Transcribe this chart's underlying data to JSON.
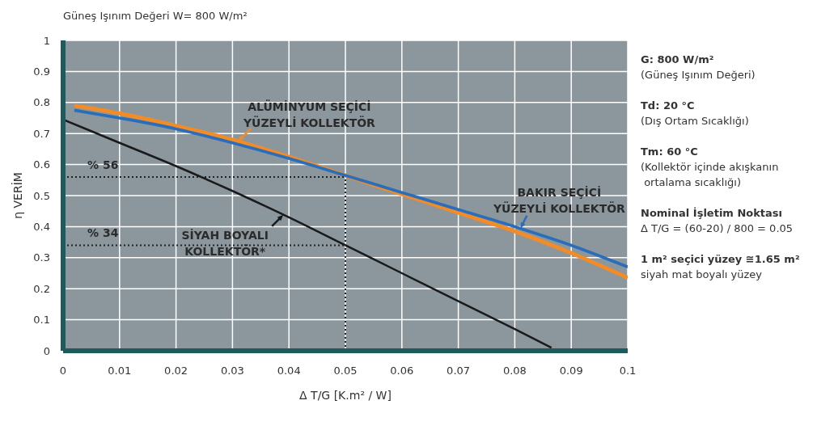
{
  "chart_data": {
    "type": "line",
    "title": "Güneş Işınım Değeri W= 800 W/m²",
    "xlabel": "Δ T/G [K.m² / W]",
    "ylabel": "η VERİM",
    "xlim": [
      0,
      0.1
    ],
    "xticks": [
      0,
      0.01,
      0.02,
      0.03,
      0.04,
      0.05,
      0.06,
      0.07,
      0.08,
      0.09,
      0.1
    ],
    "ylim": [
      0,
      1
    ],
    "yticks": [
      0,
      0.1,
      0.2,
      0.3,
      0.4,
      0.5,
      0.6,
      0.7,
      0.8,
      0.9,
      1
    ],
    "grid": true,
    "marker": "none",
    "line_style": "solid",
    "series": [
      {
        "color": "#f28c28",
        "x": [
          0.002,
          0.01,
          0.02,
          0.03,
          0.04,
          0.05,
          0.06,
          0.07,
          0.08,
          0.09,
          0.1
        ],
        "values": [
          0.79,
          0.765,
          0.725,
          0.68,
          0.625,
          0.565,
          0.505,
          0.445,
          0.385,
          0.315,
          0.235
        ]
      },
      {
        "color": "#2a6ebb",
        "x": [
          0.002,
          0.01,
          0.02,
          0.03,
          0.04,
          0.05,
          0.06,
          0.07,
          0.08,
          0.09,
          0.1
        ],
        "values": [
          0.775,
          0.75,
          0.715,
          0.67,
          0.62,
          0.565,
          0.51,
          0.455,
          0.4,
          0.34,
          0.27
        ]
      },
      {
        "color": "#1a1a1a",
        "x": [
          0,
          0.01,
          0.02,
          0.03,
          0.04,
          0.05,
          0.06,
          0.07,
          0.08,
          0.0865
        ],
        "values": [
          0.745,
          0.67,
          0.595,
          0.515,
          0.43,
          0.34,
          0.25,
          0.16,
          0.07,
          0.01
        ]
      }
    ],
    "ref_lines": [
      {
        "axis": "y",
        "value": 0.56,
        "label": "% 56",
        "line_style": "dotted",
        "color": "#222222"
      },
      {
        "axis": "y",
        "value": 0.34,
        "label": "% 34",
        "line_style": "dotted",
        "color": "#222222"
      },
      {
        "axis": "x",
        "value": 0.05,
        "line_style": "dotted",
        "color": "#222222"
      }
    ],
    "annotations": [
      {
        "text": "ALÜMİNYUM SEÇİCİ\nYÜZEYLİ KOLLEKTÖR",
        "x": 0.031,
        "y": 0.675
      },
      {
        "text": "BAKIR SEÇİCİ\nYÜZEYLİ KOLLEKTÖR",
        "x": 0.081,
        "y": 0.394
      },
      {
        "text": "SİYAH BOYALI\nKOLLEKTÖR*",
        "x": 0.039,
        "y": 0.438
      },
      "G: 800 W/m²\n(Güneş Işınım Değeri)",
      "Td: 20 °C\n(Dış Ortam Sıcaklığı)",
      "Tm: 60 °C\n(Kollektör içinde akışkanın\n ortalama sıcaklığı)",
      "Nominal İşletim Noktası\nΔ T/G = (60-20) / 800 = 0.05",
      "1 m² seçici yüzey ≅1.65 m²\nsiyah mat boyalı yüzey"
    ]
  }
}
